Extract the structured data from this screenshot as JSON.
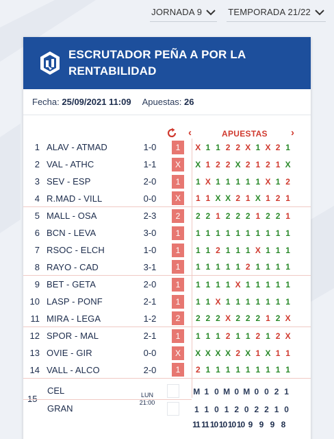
{
  "selectors": {
    "jornada": "JORNADA 9",
    "temporada": "TEMPORADA 21/22"
  },
  "header": {
    "title": "ESCRUTADOR PEÑA A POR LA RENTABILIDAD"
  },
  "meta": {
    "fecha_label": "Fecha:",
    "fecha_value": "25/09/2021 11:09",
    "apuestas_label": "Apuestas:",
    "apuestas_value": "26"
  },
  "table_head": {
    "prev": "‹",
    "next": "›",
    "apuestas": "APUESTAS"
  },
  "matches": [
    {
      "n": "1",
      "match": "ALAV - ATMAD",
      "score": "1-0",
      "sign": "1",
      "picks": [
        "X",
        "1",
        "1",
        "2",
        "2",
        "X",
        "1",
        "X",
        "2",
        "1"
      ]
    },
    {
      "n": "2",
      "match": "VAL - ATHC",
      "score": "1-1",
      "sign": "X",
      "picks": [
        "X",
        "1",
        "2",
        "2",
        "X",
        "2",
        "1",
        "2",
        "1",
        "X"
      ]
    },
    {
      "n": "3",
      "match": "SEV - ESP",
      "score": "2-0",
      "sign": "1",
      "picks": [
        "1",
        "X",
        "1",
        "1",
        "1",
        "1",
        "1",
        "X",
        "1",
        "2"
      ]
    },
    {
      "n": "4",
      "match": "R.MAD - VILL",
      "score": "0-0",
      "sign": "X",
      "picks": [
        "1",
        "1",
        "X",
        "X",
        "2",
        "1",
        "X",
        "1",
        "2",
        "1"
      ]
    },
    {
      "n": "5",
      "match": "MALL - OSA",
      "score": "2-3",
      "sign": "2",
      "picks": [
        "2",
        "2",
        "1",
        "2",
        "2",
        "2",
        "1",
        "2",
        "2",
        "1"
      ]
    },
    {
      "n": "6",
      "match": "BCN - LEVA",
      "score": "3-0",
      "sign": "1",
      "picks": [
        "1",
        "1",
        "1",
        "1",
        "1",
        "1",
        "1",
        "1",
        "1",
        "1"
      ]
    },
    {
      "n": "7",
      "match": "RSOC - ELCH",
      "score": "1-0",
      "sign": "1",
      "picks": [
        "1",
        "1",
        "2",
        "1",
        "1",
        "1",
        "X",
        "1",
        "1",
        "1"
      ]
    },
    {
      "n": "8",
      "match": "RAYO - CAD",
      "score": "3-1",
      "sign": "1",
      "picks": [
        "1",
        "1",
        "1",
        "1",
        "1",
        "2",
        "1",
        "1",
        "1",
        "1"
      ]
    },
    {
      "n": "9",
      "match": "BET - GETA",
      "score": "2-0",
      "sign": "1",
      "picks": [
        "1",
        "1",
        "1",
        "1",
        "X",
        "1",
        "1",
        "1",
        "1",
        "1"
      ]
    },
    {
      "n": "10",
      "match": "LASP - PONF",
      "score": "2-1",
      "sign": "1",
      "picks": [
        "1",
        "1",
        "X",
        "1",
        "1",
        "1",
        "1",
        "1",
        "1",
        "1"
      ]
    },
    {
      "n": "11",
      "match": "MIRA - LEGA",
      "score": "1-2",
      "sign": "2",
      "picks": [
        "2",
        "2",
        "2",
        "X",
        "2",
        "2",
        "2",
        "1",
        "2",
        "X"
      ]
    },
    {
      "n": "12",
      "match": "SPOR - MAL",
      "score": "2-1",
      "sign": "1",
      "picks": [
        "1",
        "1",
        "1",
        "2",
        "1",
        "1",
        "2",
        "1",
        "2",
        "X"
      ]
    },
    {
      "n": "13",
      "match": "OVIE - GIR",
      "score": "0-0",
      "sign": "X",
      "picks": [
        "X",
        "X",
        "X",
        "X",
        "2",
        "X",
        "1",
        "X",
        "1",
        "1"
      ]
    },
    {
      "n": "14",
      "match": "VALL - ALCO",
      "score": "2-0",
      "sign": "1",
      "picks": [
        "2",
        "1",
        "1",
        "1",
        "1",
        "1",
        "1",
        "1",
        "1",
        "1"
      ]
    }
  ],
  "pleno": {
    "n": "15",
    "home": "CEL",
    "away": "GRAN",
    "day": "LUN",
    "time": "21:00",
    "home_picks": [
      "M",
      "1",
      "0",
      "M",
      "0",
      "M",
      "0",
      "0",
      "2",
      "1"
    ],
    "away_picks": [
      "1",
      "1",
      "0",
      "1",
      "2",
      "0",
      "2",
      "2",
      "1",
      "0"
    ]
  },
  "totals": [
    "11",
    "11",
    "10",
    "10",
    "10",
    "10",
    "9",
    "9",
    "9",
    "8"
  ],
  "colors": {
    "header_bg": "#1d4f9c",
    "accent_red": "#d03a2f",
    "sign_bg": "#e77771",
    "correct": "#2a8a2a",
    "wrong": "#d03a2f"
  }
}
